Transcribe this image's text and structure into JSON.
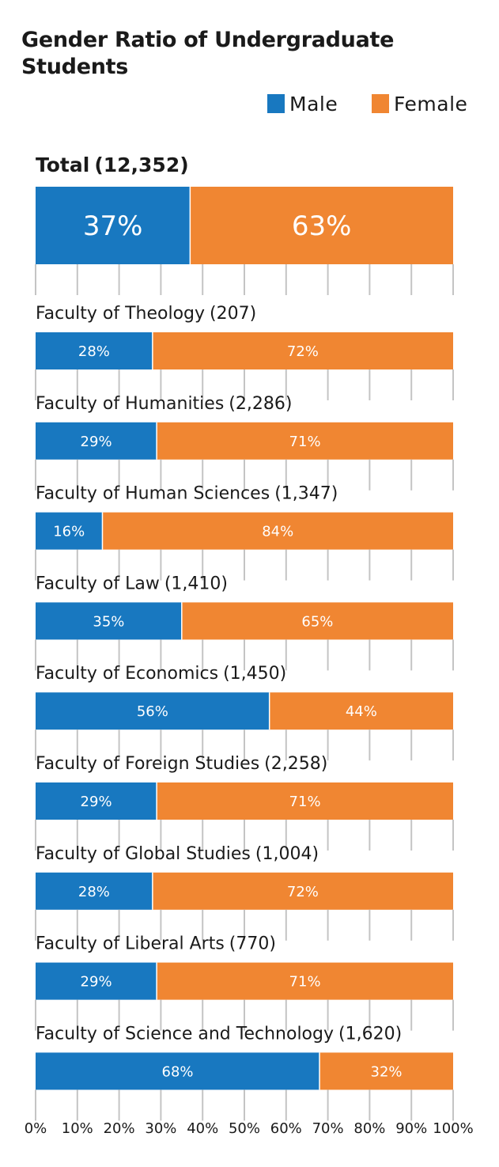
{
  "chart_data": {
    "type": "bar",
    "orientation": "horizontal-stacked-100",
    "title": "Gender Ratio of Undergraduate Students",
    "legend": [
      {
        "name": "Male",
        "color": "#1878c0"
      },
      {
        "name": "Female",
        "color": "#f08632"
      }
    ],
    "xticks": [
      "0%",
      "10%",
      "20%",
      "30%",
      "40%",
      "50%",
      "60%",
      "70%",
      "80%",
      "90%",
      "100%"
    ],
    "xlim": [
      0,
      100
    ],
    "categories": [
      {
        "label": "Total",
        "count": "(12,352)",
        "male": 37,
        "female": 63
      },
      {
        "label": "Faculty of Theology",
        "count": "(207)",
        "male": 28,
        "female": 72
      },
      {
        "label": "Faculty of Humanities",
        "count": "(2,286)",
        "male": 29,
        "female": 71
      },
      {
        "label": "Faculty of Human Sciences",
        "count": "(1,347)",
        "male": 16,
        "female": 84
      },
      {
        "label": "Faculty of Law",
        "count": "(1,410)",
        "male": 35,
        "female": 65
      },
      {
        "label": "Faculty of Economics",
        "count": "(1,450)",
        "male": 56,
        "female": 44
      },
      {
        "label": "Faculty of Foreign Studies",
        "count": "(2,258)",
        "male": 29,
        "female": 71
      },
      {
        "label": "Faculty of Global Studies",
        "count": "(1,004)",
        "male": 28,
        "female": 72
      },
      {
        "label": "Faculty of Liberal Arts",
        "count": "(770)",
        "male": 29,
        "female": 71
      },
      {
        "label": "Faculty of Science and Technology",
        "count": "(1,620)",
        "male": 68,
        "female": 32
      }
    ]
  }
}
